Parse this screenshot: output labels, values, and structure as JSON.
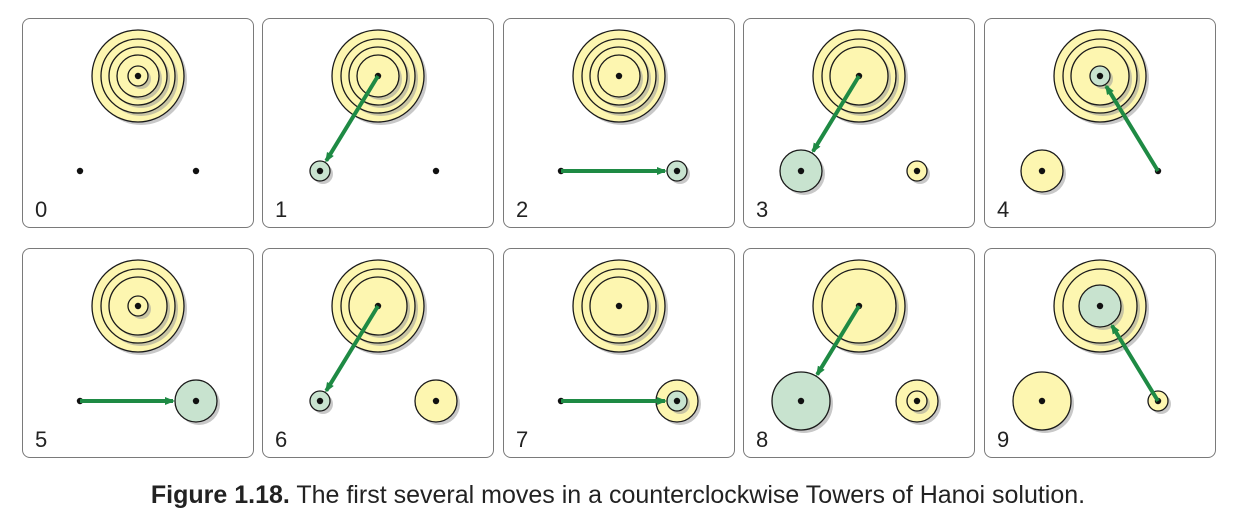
{
  "caption": {
    "label": "Figure 1.18.",
    "text": " The first several moves in a counterclockwise Towers of Hanoi solution."
  },
  "colors": {
    "disk_fill": "#fdf6b0",
    "moved_disk_fill": "#c8e3cf",
    "disk_stroke": "#1a1a1a",
    "arrow": "#1e8a44",
    "peg_dot": "#111111"
  },
  "panels": [
    {
      "label": "0",
      "pegs": [
        [
          1,
          2,
          3,
          4,
          5
        ],
        [],
        []
      ],
      "highlight": null,
      "move": null
    },
    {
      "label": "1",
      "pegs": [
        [
          2,
          3,
          4,
          5
        ],
        [
          1
        ],
        []
      ],
      "highlight": [
        1,
        1
      ],
      "move": [
        0,
        1
      ]
    },
    {
      "label": "2",
      "pegs": [
        [
          2,
          3,
          4,
          5
        ],
        [],
        [
          1
        ]
      ],
      "highlight": [
        2,
        1
      ],
      "move": [
        1,
        2
      ]
    },
    {
      "label": "3",
      "pegs": [
        [
          3,
          4,
          5
        ],
        [
          2
        ],
        [
          1
        ]
      ],
      "highlight": [
        1,
        2
      ],
      "move": [
        0,
        1
      ]
    },
    {
      "label": "4",
      "pegs": [
        [
          1,
          3,
          4,
          5
        ],
        [
          2
        ],
        []
      ],
      "highlight": [
        0,
        1
      ],
      "move": [
        2,
        0
      ]
    },
    {
      "label": "5",
      "pegs": [
        [
          1,
          3,
          4,
          5
        ],
        [],
        [
          2
        ]
      ],
      "highlight": [
        2,
        2
      ],
      "move": [
        1,
        2
      ]
    },
    {
      "label": "6",
      "pegs": [
        [
          3,
          4,
          5
        ],
        [
          1
        ],
        [
          2
        ]
      ],
      "highlight": [
        1,
        1
      ],
      "move": [
        0,
        1
      ]
    },
    {
      "label": "7",
      "pegs": [
        [
          3,
          4,
          5
        ],
        [],
        [
          1,
          2
        ]
      ],
      "highlight": [
        2,
        1
      ],
      "move": [
        1,
        2
      ]
    },
    {
      "label": "8",
      "pegs": [
        [
          4,
          5
        ],
        [
          3
        ],
        [
          1,
          2
        ]
      ],
      "highlight": [
        1,
        3
      ],
      "move": [
        0,
        1
      ]
    },
    {
      "label": "9",
      "pegs": [
        [
          2,
          4,
          5
        ],
        [
          3
        ],
        [
          1
        ]
      ],
      "highlight": [
        0,
        2
      ],
      "move": [
        2,
        0
      ]
    }
  ]
}
